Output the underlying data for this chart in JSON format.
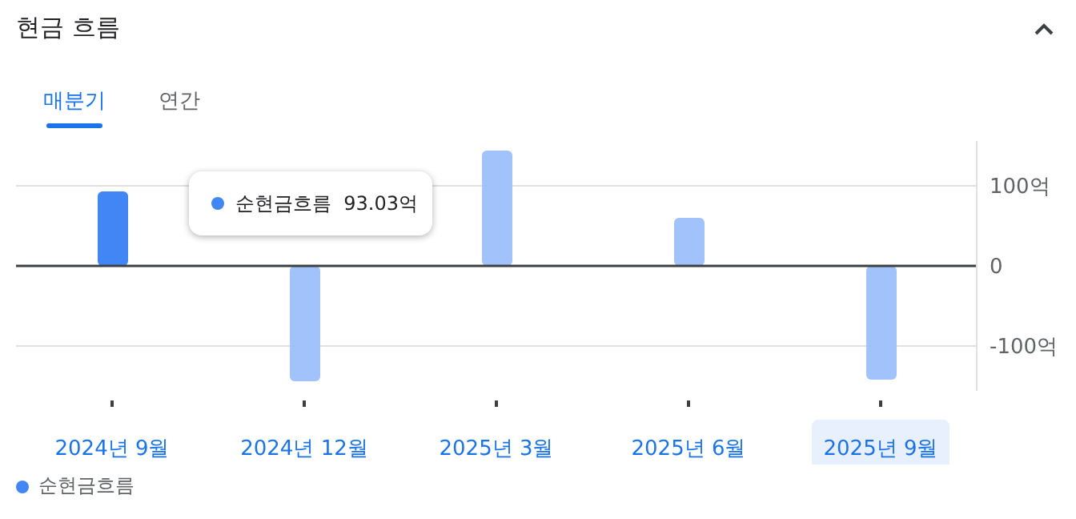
{
  "chart_data": {
    "type": "bar",
    "title": "현금 흐름",
    "annotations": [
      "매분기",
      "연간",
      "순현금흐름  93.03억"
    ],
    "categories": [
      "2024년 9월",
      "2024년 12월",
      "2025년 3월",
      "2025년 6월",
      "2025년 9월"
    ],
    "series": [
      {
        "name": "순현금흐름",
        "color": "#4285f4",
        "colors": [
          "#4285f4",
          "#a1c2fa",
          "#a1c2fa",
          "#a1c2fa",
          "#a1c2fa"
        ],
        "values": [
          93.03,
          -144,
          144,
          60,
          -142
        ]
      }
    ],
    "ylim": [
      -156,
      156
    ],
    "yticks": [
      {
        "value": -100,
        "label": "-100억"
      },
      0,
      {
        "value": 100,
        "label": "100억"
      }
    ],
    "ref_lines": [
      {
        "axis": "y",
        "value": 0,
        "color": "#3c4043"
      }
    ],
    "grid": "y",
    "legend": "bottom left"
  }
}
